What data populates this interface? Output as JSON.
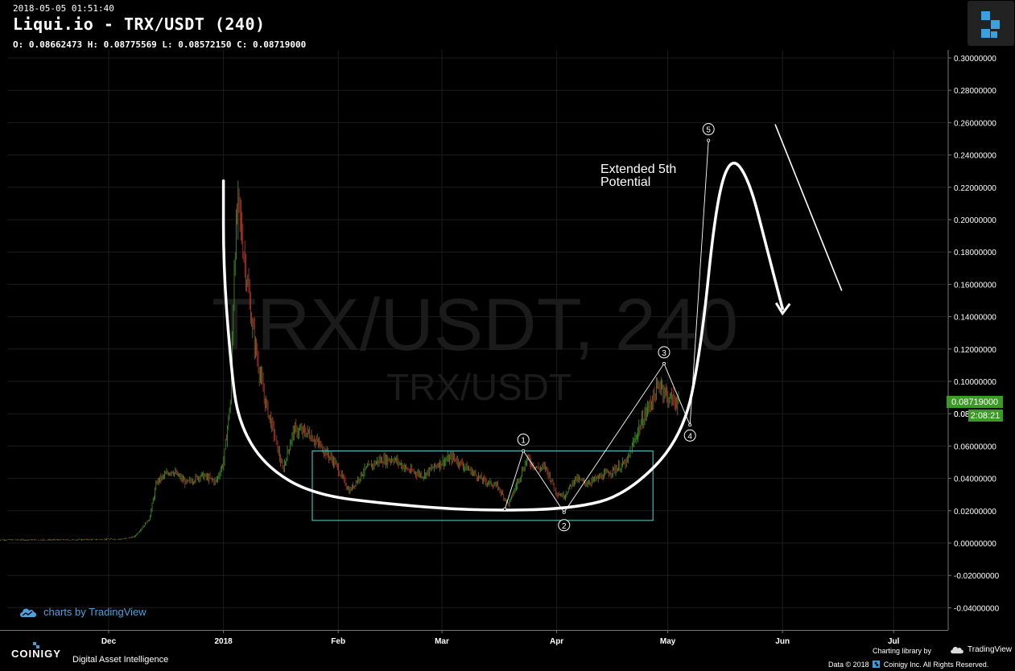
{
  "header": {
    "timestamp": "2018-05-05 01:51:40",
    "title": "Liqui.io - TRX/USDT (240)",
    "ohlc": "O: 0.08662473 H: 0.08775569 L: 0.08572150 C: 0.08719000"
  },
  "watermark": {
    "large": "TRX/USDT, 240",
    "small": "TRX/USDT"
  },
  "price_badge": {
    "value": "0.08719000",
    "countdown": "2:08:21",
    "partial_tick": "0.08"
  },
  "annotation_text": [
    "Extended 5th",
    "Potential"
  ],
  "wave_labels": [
    "1",
    "2",
    "3",
    "4",
    "5"
  ],
  "credits": {
    "tradingview": "charts by TradingView",
    "brand": "COINIGY",
    "tagline": "Digital Asset Intelligence",
    "charting_library": "Charting library by",
    "tv_name": "TradingView",
    "copyright": "Data © 2018",
    "copyright_company": "Coinigy Inc. All Rights Reserved."
  },
  "colors": {
    "background": "#000000",
    "up": "#3f9a2a",
    "down": "#c0392b",
    "box": "#5bd6d6",
    "price_badge": "#3c9a26",
    "credit_blue": "#4aa3df"
  },
  "chart_data": {
    "type": "candlestick",
    "pair": "TRX/USDT",
    "exchange": "Liqui.io",
    "interval": "240",
    "x_labels": [
      "Dec",
      "2018",
      "Feb",
      "Mar",
      "Apr",
      "May",
      "Jun",
      "Jul"
    ],
    "y_ticks": [
      0.3,
      0.28,
      0.26,
      0.24,
      0.22,
      0.2,
      0.18,
      0.16,
      0.14,
      0.12,
      0.1,
      0.08,
      0.06,
      0.04,
      0.02,
      0.0,
      -0.02,
      -0.04
    ],
    "y_tick_labels": [
      "0.30000000",
      "0.28000000",
      "0.26000000",
      "0.24000000",
      "0.22000000",
      "0.20000000",
      "0.18000000",
      "0.16000000",
      "0.14000000",
      "0.12000000",
      "0.10000000",
      "0.08",
      "0.06000000",
      "0.04000000",
      "0.02000000",
      "0.00000000",
      "-0.02000000",
      "-0.04000000"
    ],
    "ylim": [
      -0.046,
      0.306
    ],
    "last_close": 0.08719,
    "price_path": [
      [
        "2017-11-01",
        0.002
      ],
      [
        "2017-11-20",
        0.002
      ],
      [
        "2017-12-05",
        0.0025
      ],
      [
        "2017-12-08",
        0.004
      ],
      [
        "2017-12-12",
        0.015
      ],
      [
        "2017-12-14",
        0.038
      ],
      [
        "2017-12-18",
        0.045
      ],
      [
        "2017-12-22",
        0.037
      ],
      [
        "2017-12-26",
        0.042
      ],
      [
        "2017-12-30",
        0.038
      ],
      [
        "2018-01-01",
        0.05
      ],
      [
        "2018-01-03",
        0.09
      ],
      [
        "2018-01-04",
        0.18
      ],
      [
        "2018-01-05",
        0.21
      ],
      [
        "2018-01-07",
        0.17
      ],
      [
        "2018-01-09",
        0.13
      ],
      [
        "2018-01-12",
        0.09
      ],
      [
        "2018-01-15",
        0.065
      ],
      [
        "2018-01-17",
        0.045
      ],
      [
        "2018-01-20",
        0.07
      ],
      [
        "2018-01-24",
        0.068
      ],
      [
        "2018-01-28",
        0.058
      ],
      [
        "2018-01-31",
        0.05
      ],
      [
        "2018-02-04",
        0.032
      ],
      [
        "2018-02-08",
        0.045
      ],
      [
        "2018-02-12",
        0.051
      ],
      [
        "2018-02-16",
        0.052
      ],
      [
        "2018-02-20",
        0.045
      ],
      [
        "2018-02-24",
        0.042
      ],
      [
        "2018-02-28",
        0.049
      ],
      [
        "2018-03-04",
        0.053
      ],
      [
        "2018-03-08",
        0.046
      ],
      [
        "2018-03-12",
        0.039
      ],
      [
        "2018-03-16",
        0.035
      ],
      [
        "2018-03-19",
        0.024
      ],
      [
        "2018-03-22",
        0.041
      ],
      [
        "2018-03-24",
        0.052
      ],
      [
        "2018-03-27",
        0.046
      ],
      [
        "2018-03-29",
        0.047
      ],
      [
        "2018-04-01",
        0.031
      ],
      [
        "2018-04-03",
        0.029
      ],
      [
        "2018-04-06",
        0.04
      ],
      [
        "2018-04-09",
        0.037
      ],
      [
        "2018-04-13",
        0.041
      ],
      [
        "2018-04-17",
        0.046
      ],
      [
        "2018-04-20",
        0.05
      ],
      [
        "2018-04-23",
        0.07
      ],
      [
        "2018-04-26",
        0.085
      ],
      [
        "2018-04-29",
        0.099
      ],
      [
        "2018-05-01",
        0.09
      ],
      [
        "2018-05-04",
        0.087
      ]
    ],
    "rectangle": {
      "x0": "2018-01-25",
      "x1": "2018-04-27",
      "y0": 0.057,
      "y1": 0.014
    },
    "wave_points": [
      {
        "label": "",
        "date": "2018-03-18",
        "price": 0.021
      },
      {
        "label": "1",
        "date": "2018-03-23",
        "price": 0.057
      },
      {
        "label": "2",
        "date": "2018-04-03",
        "price": 0.019
      },
      {
        "label": "3",
        "date": "2018-04-30",
        "price": 0.111
      },
      {
        "label": "4",
        "date": "2018-05-07",
        "price": 0.073
      },
      {
        "label": "5",
        "date": "2018-05-12",
        "price": 0.249
      }
    ],
    "projection_curve": [
      [
        "2018-01-01",
        0.224
      ],
      [
        "2018-01-01",
        0.17
      ],
      [
        "2018-01-03",
        0.11
      ],
      [
        "2018-01-05",
        0.075
      ],
      [
        "2018-01-12",
        0.048
      ],
      [
        "2018-01-25",
        0.03
      ],
      [
        "2018-02-15",
        0.024
      ],
      [
        "2018-03-10",
        0.02
      ],
      [
        "2018-04-05",
        0.021
      ],
      [
        "2018-04-20",
        0.03
      ],
      [
        "2018-05-05",
        0.065
      ],
      [
        "2018-05-10",
        0.12
      ],
      [
        "2018-05-14",
        0.21
      ],
      [
        "2018-05-18",
        0.24
      ],
      [
        "2018-05-23",
        0.225
      ],
      [
        "2018-05-28",
        0.18
      ],
      [
        "2018-06-01",
        0.145
      ]
    ],
    "projection_arrow_tip": [
      "2018-06-01",
      0.142
    ],
    "trend_line": [
      [
        "2018-05-30",
        0.259
      ],
      [
        "2018-06-17",
        0.156
      ]
    ]
  }
}
